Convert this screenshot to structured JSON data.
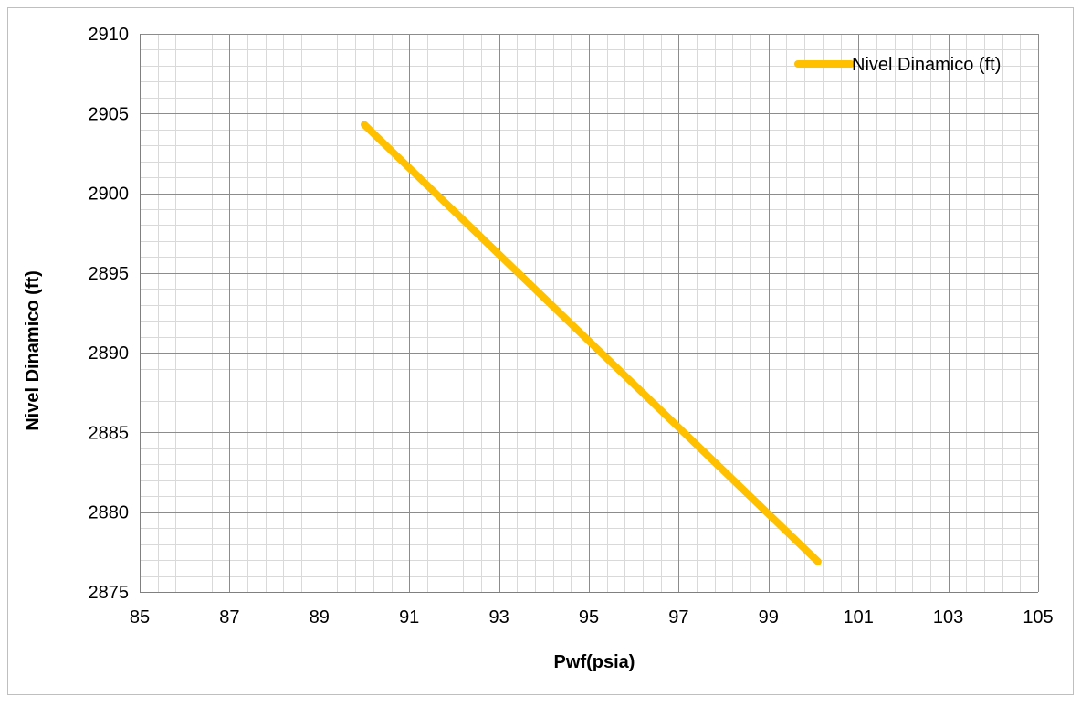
{
  "chart_data": {
    "type": "line",
    "title": "",
    "xlabel": "Pwf(psia)",
    "ylabel": "Nivel Dinamico (ft)",
    "xlim": [
      85,
      105
    ],
    "ylim": [
      2875,
      2910
    ],
    "x_ticks": [
      85,
      87,
      89,
      91,
      93,
      95,
      97,
      99,
      101,
      103,
      105
    ],
    "y_ticks": [
      2875,
      2880,
      2885,
      2890,
      2895,
      2900,
      2905,
      2910
    ],
    "x_minor_step": 0.4,
    "y_minor_step": 1,
    "grid": true,
    "legend_position": "top-right",
    "series": [
      {
        "name": "Nivel Dinamico (ft)",
        "color": "#FFC000",
        "x": [
          90,
          100.1
        ],
        "y": [
          2904.3,
          2876.9
        ]
      }
    ]
  }
}
